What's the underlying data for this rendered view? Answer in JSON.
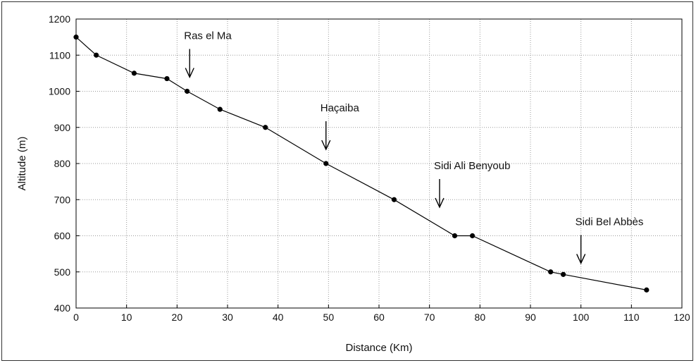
{
  "chart_data": {
    "type": "line",
    "xlabel": "Distance (Km)",
    "ylabel": "Altitude (m)",
    "xlim": [
      0,
      120
    ],
    "ylim": [
      400,
      1200
    ],
    "x_ticks": [
      "0",
      "10",
      "20",
      "30",
      "40",
      "50",
      "60",
      "70",
      "80",
      "90",
      "100",
      "110",
      "120"
    ],
    "y_ticks": [
      "400",
      "500",
      "600",
      "700",
      "800",
      "900",
      "1000",
      "1100",
      "1200"
    ],
    "grid": true,
    "colors": {
      "line": "#000000",
      "grid": "#9a9a9a"
    },
    "series": [
      {
        "x": [
          0,
          4,
          11.5,
          18,
          22,
          28.5,
          37.5,
          49.5,
          63,
          75,
          78.5,
          94,
          96.5,
          113
        ],
        "values": [
          1150,
          1100,
          1050,
          1035,
          1000,
          950,
          900,
          800,
          700,
          600,
          600,
          500,
          493,
          450
        ]
      }
    ],
    "annotations": [
      {
        "text": "Ras el Ma",
        "x": 22.5,
        "y": 1000
      },
      {
        "text": "Haçaiba",
        "x": 49.5,
        "y": 800
      },
      {
        "text": "Sidi Ali Benyoub",
        "x": 72,
        "y": 640
      },
      {
        "text": "Sidi Bel Abbès",
        "x": 100,
        "y": 485
      }
    ]
  }
}
